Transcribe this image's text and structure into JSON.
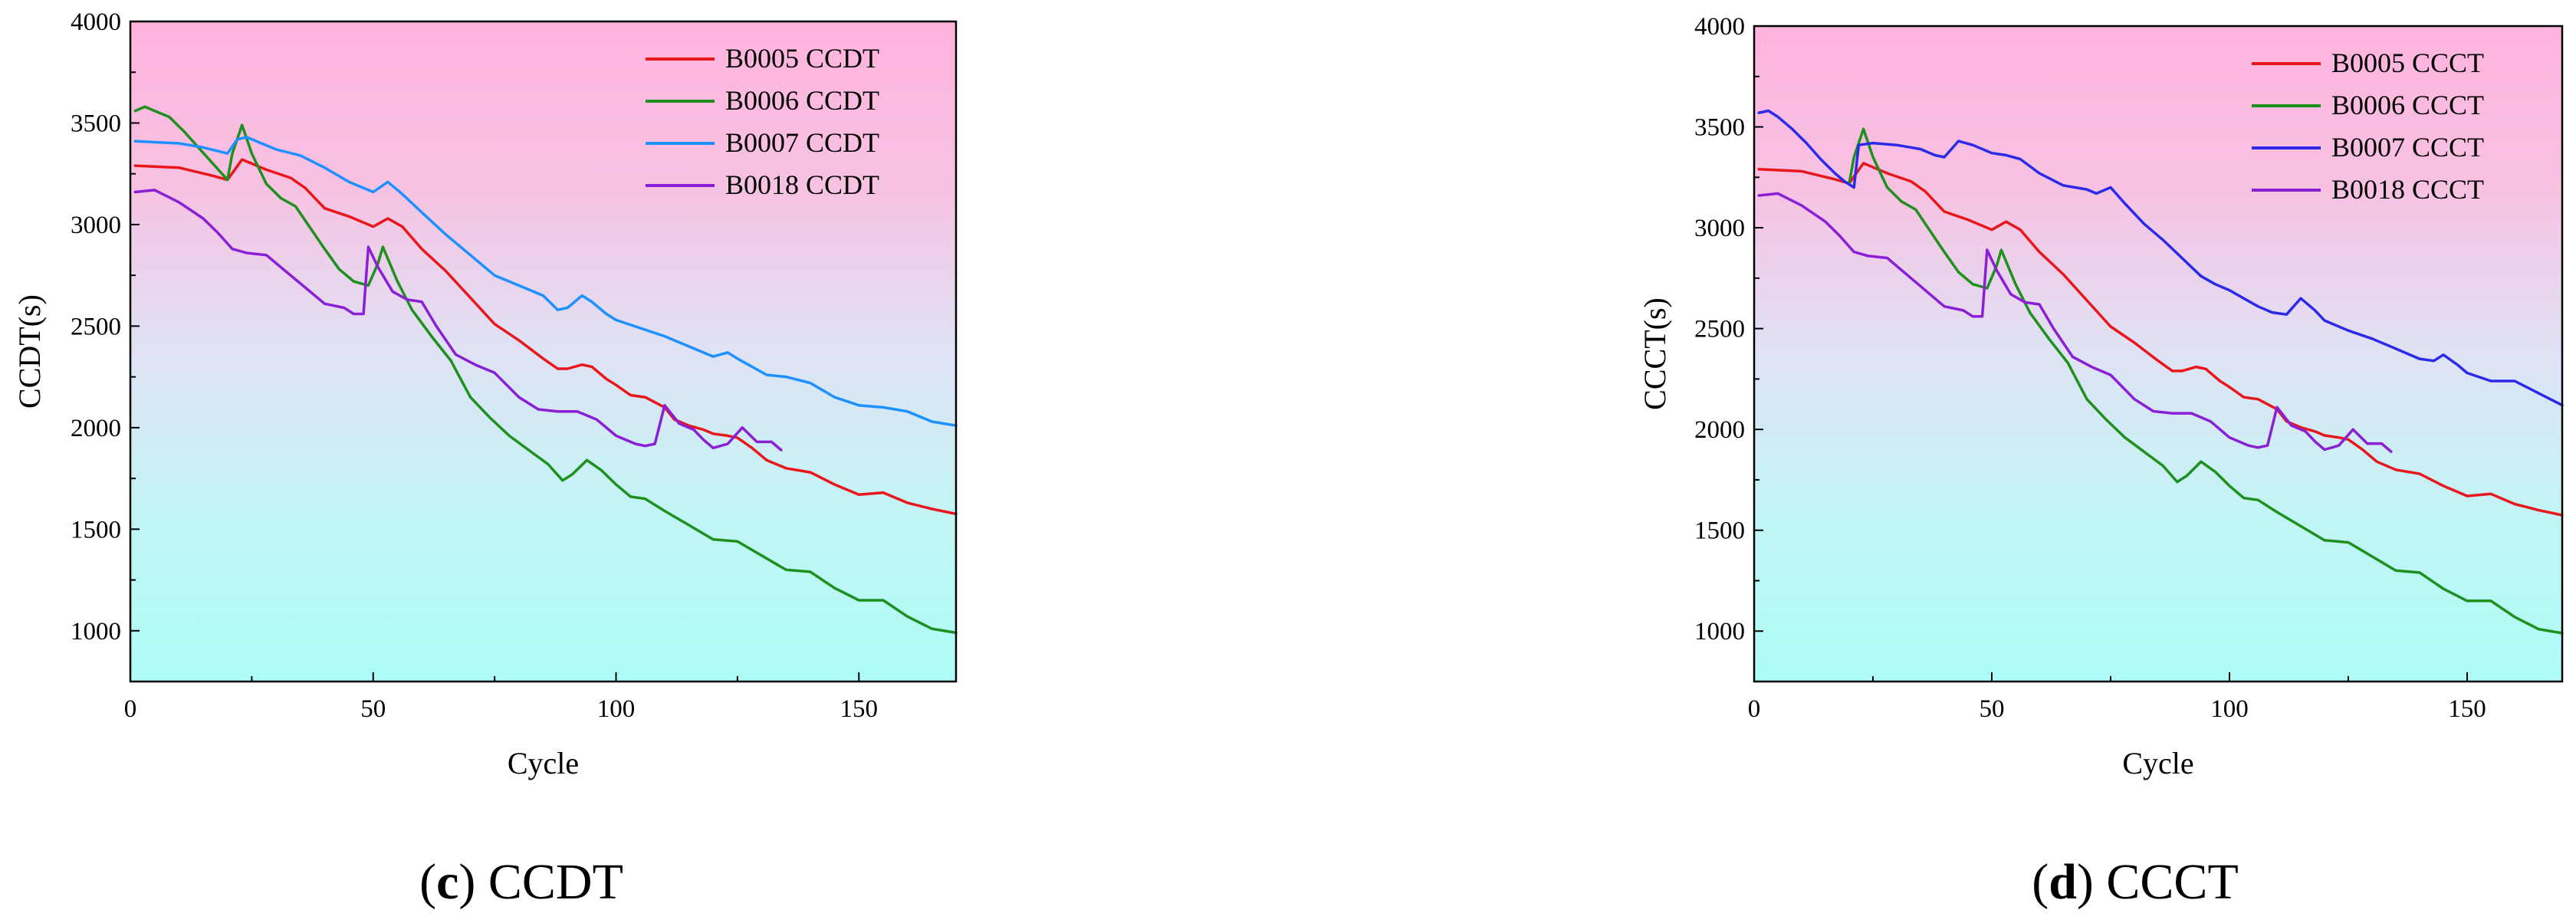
{
  "charts": [
    {
      "id": "c",
      "caption_letter": "c",
      "caption_text": "CCDT",
      "chart_data": {
        "type": "line",
        "title": "",
        "xlabel": "Cycle",
        "ylabel": "CCDT(s)",
        "xlim": [
          0,
          170
        ],
        "ylim": [
          750,
          4000
        ],
        "xticks": [
          "0",
          "50",
          "100",
          "150"
        ],
        "yticks": [
          "1000",
          "1500",
          "2000",
          "2500",
          "3000",
          "3500",
          "4000"
        ],
        "legend_position": "top-right",
        "series": [
          {
            "name": "B0005 CCDT",
            "color": "#e8171b",
            "x": [
              1,
              10,
              17,
              20,
              23,
              25,
              28,
              33,
              36,
              40,
              45,
              50,
              53,
              56,
              60,
              65,
              70,
              75,
              80,
              85,
              88,
              90,
              93,
              95,
              98,
              100,
              103,
              106,
              110,
              112,
              115,
              118,
              120,
              123,
              125,
              128,
              131,
              135,
              140,
              145,
              150,
              155,
              160,
              165,
              170
            ],
            "y": [
              3290,
              3280,
              3240,
              3220,
              3320,
              3300,
              3270,
              3230,
              3180,
              3080,
              3040,
              2990,
              3030,
              2990,
              2880,
              2770,
              2640,
              2510,
              2430,
              2340,
              2290,
              2290,
              2310,
              2300,
              2240,
              2210,
              2160,
              2150,
              2100,
              2040,
              2010,
              1990,
              1970,
              1960,
              1950,
              1900,
              1840,
              1800,
              1780,
              1720,
              1670,
              1680,
              1630,
              1600,
              1575
            ]
          },
          {
            "name": "B0006 CCDT",
            "color": "#1e901e",
            "x": [
              1,
              3,
              5,
              8,
              11,
              14,
              17,
              20,
              21,
              23,
              25,
              28,
              31,
              34,
              36,
              40,
              43,
              46,
              49,
              51,
              52,
              55,
              58,
              62,
              66,
              70,
              74,
              78,
              82,
              86,
              89,
              91,
              94,
              97,
              100,
              103,
              106,
              110,
              115,
              120,
              125,
              130,
              135,
              140,
              145,
              150,
              155,
              160,
              165,
              170
            ],
            "y": [
              3560,
              3580,
              3560,
              3530,
              3460,
              3380,
              3300,
              3220,
              3350,
              3490,
              3350,
              3200,
              3130,
              3090,
              3020,
              2880,
              2780,
              2720,
              2700,
              2810,
              2890,
              2720,
              2580,
              2450,
              2330,
              2150,
              2050,
              1960,
              1890,
              1820,
              1740,
              1770,
              1840,
              1790,
              1720,
              1660,
              1650,
              1590,
              1520,
              1450,
              1440,
              1370,
              1300,
              1290,
              1210,
              1150,
              1150,
              1070,
              1010,
              990
            ]
          },
          {
            "name": "B0007 CCDT",
            "color": "#1e90ff",
            "x": [
              1,
              10,
              15,
              20,
              22,
              24,
              27,
              30,
              35,
              40,
              45,
              50,
              53,
              56,
              60,
              65,
              70,
              75,
              80,
              85,
              88,
              90,
              93,
              95,
              98,
              100,
              105,
              110,
              115,
              120,
              123,
              125,
              128,
              131,
              135,
              140,
              145,
              150,
              155,
              160,
              165,
              170
            ],
            "y": [
              3410,
              3400,
              3380,
              3350,
              3420,
              3430,
              3400,
              3370,
              3340,
              3280,
              3210,
              3160,
              3210,
              3150,
              3060,
              2950,
              2850,
              2750,
              2700,
              2650,
              2580,
              2590,
              2650,
              2620,
              2560,
              2530,
              2490,
              2450,
              2400,
              2350,
              2370,
              2340,
              2300,
              2260,
              2250,
              2220,
              2150,
              2110,
              2100,
              2080,
              2030,
              2010
            ]
          },
          {
            "name": "B0018 CCDT",
            "color": "#8a1fd6",
            "x": [
              1,
              5,
              10,
              15,
              18,
              21,
              24,
              28,
              32,
              36,
              40,
              44,
              46,
              48,
              49,
              51,
              54,
              57,
              60,
              63,
              67,
              71,
              75,
              80,
              84,
              88,
              92,
              96,
              100,
              104,
              106,
              108,
              110,
              113,
              116,
              118,
              120,
              123,
              126,
              129,
              132,
              134
            ],
            "y": [
              3160,
              3170,
              3110,
              3030,
              2960,
              2880,
              2860,
              2850,
              2770,
              2690,
              2610,
              2590,
              2560,
              2560,
              2890,
              2790,
              2670,
              2630,
              2620,
              2500,
              2360,
              2310,
              2270,
              2150,
              2090,
              2080,
              2080,
              2040,
              1960,
              1920,
              1910,
              1920,
              2110,
              2020,
              1990,
              1940,
              1900,
              1920,
              2000,
              1930,
              1930,
              1890
            ]
          }
        ]
      }
    },
    {
      "id": "d",
      "caption_letter": "d",
      "caption_text": "CCCT",
      "chart_data": {
        "type": "line",
        "title": "",
        "xlabel": "Cycle",
        "ylabel": "CCCT(s)",
        "xlim": [
          0,
          170
        ],
        "ylim": [
          750,
          4000
        ],
        "xticks": [
          "0",
          "50",
          "100",
          "150"
        ],
        "yticks": [
          "1000",
          "1500",
          "2000",
          "2500",
          "3000",
          "3500",
          "4000"
        ],
        "legend_position": "top-right",
        "series": [
          {
            "name": "B0005 CCCT",
            "color": "#e8171b",
            "x": [
              1,
              10,
              17,
              20,
              23,
              25,
              28,
              33,
              36,
              40,
              45,
              50,
              53,
              56,
              60,
              65,
              70,
              75,
              80,
              85,
              88,
              90,
              93,
              95,
              98,
              100,
              103,
              106,
              110,
              112,
              115,
              118,
              120,
              123,
              125,
              128,
              131,
              135,
              140,
              145,
              150,
              155,
              160,
              165,
              170
            ],
            "y": [
              3290,
              3280,
              3240,
              3220,
              3320,
              3300,
              3270,
              3230,
              3180,
              3080,
              3040,
              2990,
              3030,
              2990,
              2880,
              2770,
              2640,
              2510,
              2430,
              2340,
              2290,
              2290,
              2310,
              2300,
              2240,
              2210,
              2160,
              2150,
              2100,
              2040,
              2010,
              1990,
              1970,
              1960,
              1950,
              1900,
              1840,
              1800,
              1780,
              1720,
              1670,
              1680,
              1630,
              1600,
              1575
            ]
          },
          {
            "name": "B0006 CCCT",
            "color": "#1e901e",
            "x": [
              20,
              21,
              23,
              25,
              28,
              31,
              34,
              36,
              40,
              43,
              46,
              49,
              51,
              52,
              55,
              58,
              62,
              66,
              70,
              74,
              78,
              82,
              86,
              89,
              91,
              94,
              97,
              100,
              103,
              106,
              110,
              115,
              120,
              125,
              130,
              135,
              140,
              145,
              150,
              155,
              160,
              165,
              170
            ],
            "y": [
              3220,
              3350,
              3490,
              3350,
              3200,
              3130,
              3090,
              3020,
              2880,
              2780,
              2720,
              2700,
              2810,
              2890,
              2720,
              2580,
              2450,
              2330,
              2150,
              2050,
              1960,
              1890,
              1820,
              1740,
              1770,
              1840,
              1790,
              1720,
              1660,
              1650,
              1590,
              1520,
              1450,
              1440,
              1370,
              1300,
              1290,
              1210,
              1150,
              1150,
              1070,
              1010,
              990
            ]
          },
          {
            "name": "B0007 CCCT",
            "color": "#2a2ae8",
            "x": [
              1,
              3,
              5,
              8,
              11,
              14,
              17,
              19,
              21,
              22,
              25,
              30,
              35,
              38,
              40,
              43,
              46,
              50,
              53,
              56,
              60,
              65,
              70,
              72,
              75,
              78,
              82,
              86,
              90,
              94,
              97,
              100,
              103,
              106,
              109,
              112,
              115,
              118,
              120,
              125,
              130,
              135,
              140,
              143,
              145,
              148,
              150,
              155,
              160,
              165,
              170
            ],
            "y": [
              3570,
              3580,
              3550,
              3490,
              3420,
              3340,
              3270,
              3230,
              3200,
              3410,
              3420,
              3410,
              3390,
              3360,
              3350,
              3430,
              3410,
              3370,
              3360,
              3340,
              3270,
              3210,
              3190,
              3170,
              3200,
              3120,
              3020,
              2940,
              2850,
              2760,
              2720,
              2690,
              2650,
              2610,
              2580,
              2570,
              2650,
              2590,
              2540,
              2490,
              2450,
              2400,
              2350,
              2340,
              2370,
              2320,
              2280,
              2240,
              2240,
              2180,
              2120
            ]
          },
          {
            "name": "B0018 CCCT",
            "color": "#8a1fd6",
            "x": [
              1,
              5,
              10,
              15,
              18,
              21,
              24,
              28,
              32,
              36,
              40,
              44,
              46,
              48,
              49,
              51,
              54,
              57,
              60,
              63,
              67,
              71,
              75,
              80,
              84,
              88,
              92,
              96,
              100,
              104,
              106,
              108,
              110,
              113,
              116,
              118,
              120,
              123,
              126,
              129,
              132,
              134
            ],
            "y": [
              3160,
              3170,
              3110,
              3030,
              2960,
              2880,
              2860,
              2850,
              2770,
              2690,
              2610,
              2590,
              2560,
              2560,
              2890,
              2790,
              2670,
              2630,
              2620,
              2500,
              2360,
              2310,
              2270,
              2150,
              2090,
              2080,
              2080,
              2040,
              1960,
              1920,
              1910,
              1920,
              2110,
              2020,
              1990,
              1940,
              1900,
              1920,
              2000,
              1930,
              1930,
              1890
            ]
          }
        ]
      }
    }
  ]
}
